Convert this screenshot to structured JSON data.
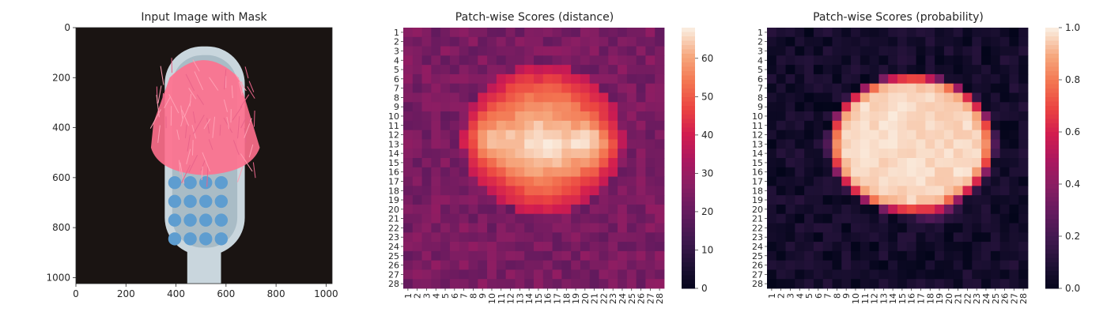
{
  "chart_data": [
    {
      "type": "image",
      "title": "Input Image with Mask",
      "xlabel": "",
      "ylabel": "",
      "xlim": [
        0,
        1024
      ],
      "ylim": [
        1024,
        0
      ],
      "xticks": [
        0,
        200,
        400,
        600,
        800,
        1000
      ],
      "yticks": [
        0,
        200,
        400,
        600,
        800,
        1000
      ],
      "background_color": "#1a1412",
      "mask_color": "#ff6f8d",
      "head_color": "#c9d6dd",
      "tuft_color": "#5e9dd0"
    },
    {
      "type": "heatmap",
      "title": "Patch-wise Scores (distance)",
      "rows": 28,
      "cols": 28,
      "row_labels": [
        "1",
        "2",
        "3",
        "4",
        "5",
        "6",
        "7",
        "8",
        "9",
        "10",
        "11",
        "12",
        "13",
        "14",
        "15",
        "16",
        "17",
        "18",
        "19",
        "20",
        "21",
        "22",
        "23",
        "24",
        "25",
        "26",
        "27",
        "28"
      ],
      "col_labels": [
        "1",
        "2",
        "3",
        "4",
        "5",
        "6",
        "7",
        "8",
        "9",
        "10",
        "11",
        "12",
        "13",
        "14",
        "15",
        "16",
        "17",
        "18",
        "19",
        "20",
        "21",
        "22",
        "23",
        "24",
        "25",
        "26",
        "27",
        "28"
      ],
      "colorbar_ticks": [
        0,
        10,
        20,
        30,
        40,
        50,
        60
      ],
      "vmin": 0,
      "vmax": 68,
      "colormap": "rocket",
      "description": "low values (~18-30) in background; high values (~55-68) in a horizontal oval region rows 4-20, cols 6-23 peaking around row 11-13 at cols 8-10 and 19-21"
    },
    {
      "type": "heatmap",
      "title": "Patch-wise Scores (probability)",
      "rows": 28,
      "cols": 28,
      "row_labels": [
        "1",
        "2",
        "3",
        "4",
        "5",
        "6",
        "7",
        "8",
        "9",
        "10",
        "11",
        "12",
        "13",
        "14",
        "15",
        "16",
        "17",
        "18",
        "19",
        "20",
        "21",
        "22",
        "23",
        "24",
        "25",
        "26",
        "27",
        "28"
      ],
      "col_labels": [
        "1",
        "2",
        "3",
        "4",
        "5",
        "6",
        "7",
        "8",
        "9",
        "10",
        "11",
        "12",
        "13",
        "14",
        "15",
        "16",
        "17",
        "18",
        "19",
        "20",
        "21",
        "22",
        "23",
        "24",
        "25",
        "26",
        "27",
        "28"
      ],
      "colorbar_ticks": [
        0.0,
        0.2,
        0.4,
        0.6,
        0.8,
        1.0
      ],
      "colorbar_tick_labels": [
        "0.0",
        "0.2",
        "0.4",
        "0.6",
        "0.8",
        "1.0"
      ],
      "vmin": 0,
      "vmax": 1,
      "colormap": "rocket",
      "description": "near 0 in background; near 1.0 in oval region rows 5-19, cols 7-24 with transition edges"
    }
  ]
}
